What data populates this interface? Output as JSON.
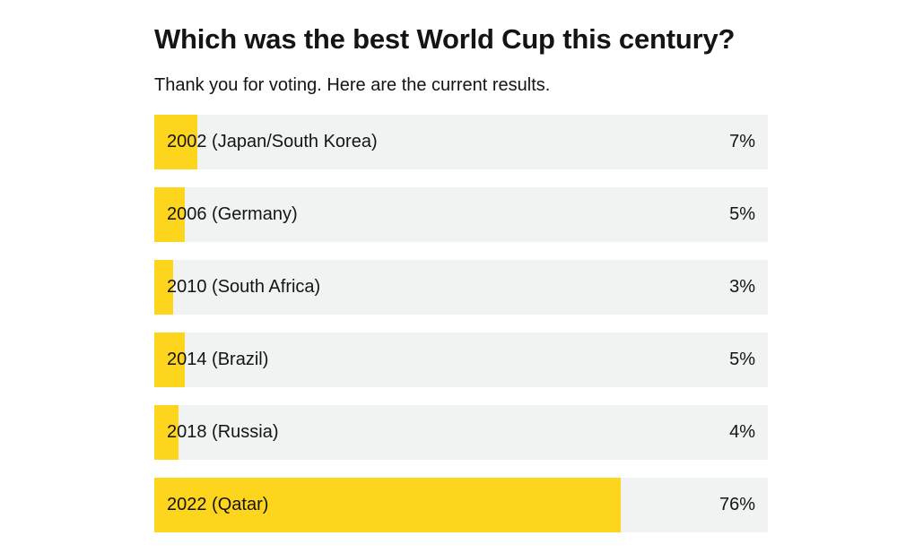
{
  "poll": {
    "title": "Which was the best World Cup this century?",
    "subtitle": "Thank you for voting. Here are the current results.",
    "colors": {
      "bar": "#fdd51d",
      "track": "#f1f3f3",
      "text": "#141414"
    },
    "results": [
      {
        "label": "2002 (Japan/South Korea)",
        "percent_text": "7%",
        "percent": 7
      },
      {
        "label": "2006 (Germany)",
        "percent_text": "5%",
        "percent": 5
      },
      {
        "label": "2010 (South Africa)",
        "percent_text": "3%",
        "percent": 3
      },
      {
        "label": "2014 (Brazil)",
        "percent_text": "5%",
        "percent": 5
      },
      {
        "label": "2018 (Russia)",
        "percent_text": "4%",
        "percent": 4
      },
      {
        "label": "2022 (Qatar)",
        "percent_text": "76%",
        "percent": 76
      }
    ]
  }
}
